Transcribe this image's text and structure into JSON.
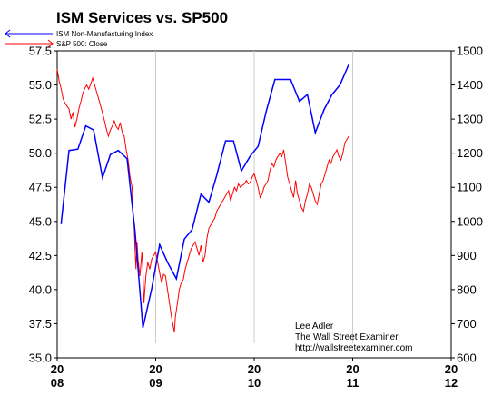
{
  "chart_data": {
    "type": "line",
    "title": "ISM Services vs. SP500",
    "legend": {
      "placement": "top-left",
      "entries": [
        {
          "name": "ISM Non-Manufacturing Index",
          "color": "#0000ff",
          "marker": "arrow-left"
        },
        {
          "name": "S&P 500: Close",
          "color": "#ff0000",
          "marker": "arrow-right"
        }
      ]
    },
    "left_axis": {
      "ylim": [
        35.0,
        57.5
      ],
      "ticks": [
        "57.5",
        "55.0",
        "52.5",
        "50.0",
        "47.5",
        "45.0",
        "42.5",
        "40.0",
        "37.5",
        "35.0"
      ]
    },
    "right_axis": {
      "ylim": [
        600,
        1500
      ],
      "ticks": [
        "1500",
        "1400",
        "1300",
        "1200",
        "1100",
        "1000",
        "900",
        "800",
        "700",
        "600"
      ]
    },
    "x_axis": {
      "xlim": [
        2008.0,
        2012.0
      ],
      "ticks": [
        {
          "value": 2008,
          "top": "20",
          "bottom": "08"
        },
        {
          "value": 2009,
          "top": "20",
          "bottom": "09"
        },
        {
          "value": 2010,
          "top": "20",
          "bottom": "10"
        },
        {
          "value": 2011,
          "top": "20",
          "bottom": "11"
        },
        {
          "value": 2012,
          "top": "20",
          "bottom": "12"
        }
      ],
      "gridlines": [
        2009,
        2010,
        2011
      ]
    },
    "series": [
      {
        "name": "ISM Non-Manufacturing Index",
        "color": "#0000ff",
        "axis": "left",
        "points": [
          [
            2008.04,
            44.8
          ],
          [
            2008.12,
            50.2
          ],
          [
            2008.21,
            50.3
          ],
          [
            2008.29,
            52.0
          ],
          [
            2008.37,
            51.7
          ],
          [
            2008.46,
            48.2
          ],
          [
            2008.54,
            49.9
          ],
          [
            2008.62,
            50.2
          ],
          [
            2008.71,
            49.6
          ],
          [
            2008.79,
            44.3
          ],
          [
            2008.87,
            37.2
          ],
          [
            2008.96,
            40.1
          ],
          [
            2009.04,
            43.3
          ],
          [
            2009.12,
            42.0
          ],
          [
            2009.21,
            40.8
          ],
          [
            2009.29,
            43.7
          ],
          [
            2009.37,
            44.4
          ],
          [
            2009.46,
            47.0
          ],
          [
            2009.54,
            46.4
          ],
          [
            2009.62,
            48.4
          ],
          [
            2009.71,
            50.9
          ],
          [
            2009.79,
            50.9
          ],
          [
            2009.87,
            48.7
          ],
          [
            2009.96,
            49.8
          ],
          [
            2010.04,
            50.5
          ],
          [
            2010.12,
            53.0
          ],
          [
            2010.21,
            55.4
          ],
          [
            2010.29,
            55.4
          ],
          [
            2010.37,
            55.4
          ],
          [
            2010.46,
            53.8
          ],
          [
            2010.54,
            54.3
          ],
          [
            2010.62,
            51.5
          ],
          [
            2010.71,
            53.2
          ],
          [
            2010.79,
            54.3
          ],
          [
            2010.87,
            55.0
          ],
          [
            2010.96,
            56.5
          ]
        ]
      },
      {
        "name": "S&P 500: Close",
        "color": "#ff0000",
        "axis": "right",
        "points": [
          [
            2008.0,
            1447
          ],
          [
            2008.02,
            1411
          ],
          [
            2008.04,
            1390
          ],
          [
            2008.06,
            1360
          ],
          [
            2008.08,
            1346
          ],
          [
            2008.1,
            1338
          ],
          [
            2008.12,
            1330
          ],
          [
            2008.14,
            1300
          ],
          [
            2008.16,
            1320
          ],
          [
            2008.18,
            1276
          ],
          [
            2008.2,
            1300
          ],
          [
            2008.22,
            1330
          ],
          [
            2008.24,
            1350
          ],
          [
            2008.26,
            1376
          ],
          [
            2008.28,
            1390
          ],
          [
            2008.3,
            1400
          ],
          [
            2008.32,
            1388
          ],
          [
            2008.34,
            1403
          ],
          [
            2008.36,
            1420
          ],
          [
            2008.38,
            1400
          ],
          [
            2008.4,
            1380
          ],
          [
            2008.42,
            1360
          ],
          [
            2008.44,
            1340
          ],
          [
            2008.46,
            1318
          ],
          [
            2008.48,
            1295
          ],
          [
            2008.5,
            1270
          ],
          [
            2008.52,
            1250
          ],
          [
            2008.54,
            1268
          ],
          [
            2008.56,
            1280
          ],
          [
            2008.58,
            1295
          ],
          [
            2008.6,
            1278
          ],
          [
            2008.62,
            1270
          ],
          [
            2008.64,
            1290
          ],
          [
            2008.66,
            1262
          ],
          [
            2008.68,
            1250
          ],
          [
            2008.7,
            1210
          ],
          [
            2008.72,
            1180
          ],
          [
            2008.74,
            1130
          ],
          [
            2008.76,
            1100
          ],
          [
            2008.77,
            1020
          ],
          [
            2008.78,
            1000
          ],
          [
            2008.79,
            920
          ],
          [
            2008.8,
            860
          ],
          [
            2008.81,
            940
          ],
          [
            2008.82,
            890
          ],
          [
            2008.84,
            840
          ],
          [
            2008.86,
            910
          ],
          [
            2008.87,
            860
          ],
          [
            2008.88,
            760
          ],
          [
            2008.89,
            800
          ],
          [
            2008.9,
            840
          ],
          [
            2008.92,
            880
          ],
          [
            2008.94,
            860
          ],
          [
            2008.96,
            890
          ],
          [
            2008.98,
            900
          ],
          [
            2009.0,
            910
          ],
          [
            2009.02,
            880
          ],
          [
            2009.04,
            850
          ],
          [
            2009.06,
            820
          ],
          [
            2009.08,
            845
          ],
          [
            2009.1,
            840
          ],
          [
            2009.12,
            800
          ],
          [
            2009.14,
            760
          ],
          [
            2009.16,
            720
          ],
          [
            2009.18,
            690
          ],
          [
            2009.19,
            676
          ],
          [
            2009.2,
            720
          ],
          [
            2009.22,
            760
          ],
          [
            2009.24,
            800
          ],
          [
            2009.26,
            820
          ],
          [
            2009.28,
            830
          ],
          [
            2009.3,
            860
          ],
          [
            2009.32,
            880
          ],
          [
            2009.34,
            900
          ],
          [
            2009.36,
            920
          ],
          [
            2009.38,
            930
          ],
          [
            2009.4,
            940
          ],
          [
            2009.42,
            920
          ],
          [
            2009.44,
            900
          ],
          [
            2009.46,
            930
          ],
          [
            2009.48,
            880
          ],
          [
            2009.5,
            900
          ],
          [
            2009.52,
            950
          ],
          [
            2009.54,
            980
          ],
          [
            2009.56,
            990
          ],
          [
            2009.58,
            1000
          ],
          [
            2009.6,
            1010
          ],
          [
            2009.62,
            1030
          ],
          [
            2009.64,
            1040
          ],
          [
            2009.66,
            1050
          ],
          [
            2009.68,
            1060
          ],
          [
            2009.7,
            1070
          ],
          [
            2009.72,
            1080
          ],
          [
            2009.74,
            1090
          ],
          [
            2009.76,
            1060
          ],
          [
            2009.78,
            1080
          ],
          [
            2009.8,
            1100
          ],
          [
            2009.82,
            1090
          ],
          [
            2009.84,
            1110
          ],
          [
            2009.86,
            1100
          ],
          [
            2009.88,
            1105
          ],
          [
            2009.9,
            1110
          ],
          [
            2009.92,
            1120
          ],
          [
            2009.94,
            1110
          ],
          [
            2009.96,
            1115
          ],
          [
            2009.98,
            1130
          ],
          [
            2010.0,
            1140
          ],
          [
            2010.02,
            1120
          ],
          [
            2010.04,
            1100
          ],
          [
            2010.06,
            1070
          ],
          [
            2010.08,
            1080
          ],
          [
            2010.1,
            1100
          ],
          [
            2010.12,
            1110
          ],
          [
            2010.14,
            1120
          ],
          [
            2010.16,
            1150
          ],
          [
            2010.18,
            1170
          ],
          [
            2010.2,
            1160
          ],
          [
            2010.22,
            1180
          ],
          [
            2010.24,
            1190
          ],
          [
            2010.26,
            1200
          ],
          [
            2010.28,
            1190
          ],
          [
            2010.3,
            1210
          ],
          [
            2010.32,
            1170
          ],
          [
            2010.34,
            1130
          ],
          [
            2010.36,
            1110
          ],
          [
            2010.38,
            1090
          ],
          [
            2010.4,
            1070
          ],
          [
            2010.42,
            1120
          ],
          [
            2010.44,
            1080
          ],
          [
            2010.46,
            1060
          ],
          [
            2010.48,
            1040
          ],
          [
            2010.5,
            1030
          ],
          [
            2010.52,
            1060
          ],
          [
            2010.54,
            1080
          ],
          [
            2010.56,
            1110
          ],
          [
            2010.58,
            1100
          ],
          [
            2010.6,
            1080
          ],
          [
            2010.62,
            1060
          ],
          [
            2010.64,
            1050
          ],
          [
            2010.66,
            1080
          ],
          [
            2010.68,
            1110
          ],
          [
            2010.7,
            1120
          ],
          [
            2010.72,
            1140
          ],
          [
            2010.74,
            1160
          ],
          [
            2010.76,
            1180
          ],
          [
            2010.78,
            1170
          ],
          [
            2010.8,
            1190
          ],
          [
            2010.82,
            1200
          ],
          [
            2010.84,
            1210
          ],
          [
            2010.86,
            1190
          ],
          [
            2010.88,
            1180
          ],
          [
            2010.9,
            1200
          ],
          [
            2010.92,
            1230
          ],
          [
            2010.94,
            1240
          ],
          [
            2010.96,
            1250
          ]
        ]
      }
    ],
    "annotations": [
      "Lee Adler",
      "The Wall Street Examiner",
      "http://wallstreetexaminer.com"
    ]
  }
}
